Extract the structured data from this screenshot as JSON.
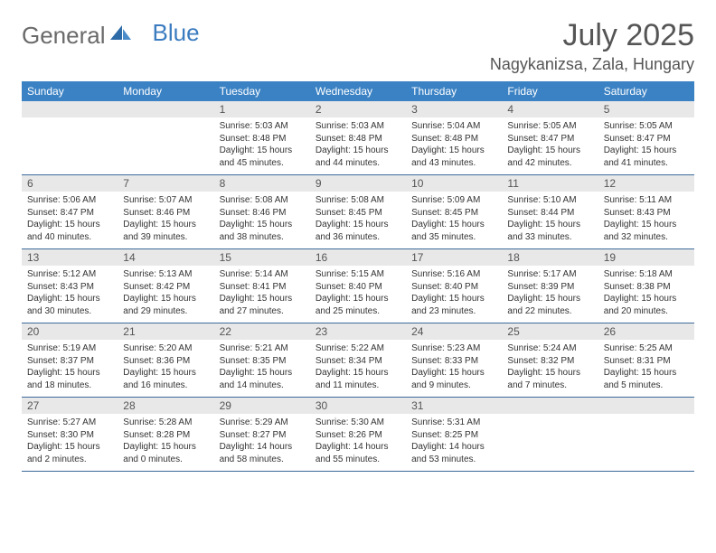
{
  "logo": {
    "text1": "General",
    "text2": "Blue"
  },
  "title": "July 2025",
  "location": "Nagykanizsa, Zala, Hungary",
  "colors": {
    "header_bg": "#3b82c4",
    "header_text": "#ffffff",
    "daynum_bg": "#e8e8e8",
    "row_border": "#3b6a9a",
    "logo_gray": "#6a6a6a",
    "logo_blue": "#3b7bc0"
  },
  "weekdays": [
    "Sunday",
    "Monday",
    "Tuesday",
    "Wednesday",
    "Thursday",
    "Friday",
    "Saturday"
  ],
  "weeks": [
    [
      null,
      null,
      {
        "n": "1",
        "sunrise": "5:03 AM",
        "sunset": "8:48 PM",
        "daylight": "15 hours and 45 minutes."
      },
      {
        "n": "2",
        "sunrise": "5:03 AM",
        "sunset": "8:48 PM",
        "daylight": "15 hours and 44 minutes."
      },
      {
        "n": "3",
        "sunrise": "5:04 AM",
        "sunset": "8:48 PM",
        "daylight": "15 hours and 43 minutes."
      },
      {
        "n": "4",
        "sunrise": "5:05 AM",
        "sunset": "8:47 PM",
        "daylight": "15 hours and 42 minutes."
      },
      {
        "n": "5",
        "sunrise": "5:05 AM",
        "sunset": "8:47 PM",
        "daylight": "15 hours and 41 minutes."
      }
    ],
    [
      {
        "n": "6",
        "sunrise": "5:06 AM",
        "sunset": "8:47 PM",
        "daylight": "15 hours and 40 minutes."
      },
      {
        "n": "7",
        "sunrise": "5:07 AM",
        "sunset": "8:46 PM",
        "daylight": "15 hours and 39 minutes."
      },
      {
        "n": "8",
        "sunrise": "5:08 AM",
        "sunset": "8:46 PM",
        "daylight": "15 hours and 38 minutes."
      },
      {
        "n": "9",
        "sunrise": "5:08 AM",
        "sunset": "8:45 PM",
        "daylight": "15 hours and 36 minutes."
      },
      {
        "n": "10",
        "sunrise": "5:09 AM",
        "sunset": "8:45 PM",
        "daylight": "15 hours and 35 minutes."
      },
      {
        "n": "11",
        "sunrise": "5:10 AM",
        "sunset": "8:44 PM",
        "daylight": "15 hours and 33 minutes."
      },
      {
        "n": "12",
        "sunrise": "5:11 AM",
        "sunset": "8:43 PM",
        "daylight": "15 hours and 32 minutes."
      }
    ],
    [
      {
        "n": "13",
        "sunrise": "5:12 AM",
        "sunset": "8:43 PM",
        "daylight": "15 hours and 30 minutes."
      },
      {
        "n": "14",
        "sunrise": "5:13 AM",
        "sunset": "8:42 PM",
        "daylight": "15 hours and 29 minutes."
      },
      {
        "n": "15",
        "sunrise": "5:14 AM",
        "sunset": "8:41 PM",
        "daylight": "15 hours and 27 minutes."
      },
      {
        "n": "16",
        "sunrise": "5:15 AM",
        "sunset": "8:40 PM",
        "daylight": "15 hours and 25 minutes."
      },
      {
        "n": "17",
        "sunrise": "5:16 AM",
        "sunset": "8:40 PM",
        "daylight": "15 hours and 23 minutes."
      },
      {
        "n": "18",
        "sunrise": "5:17 AM",
        "sunset": "8:39 PM",
        "daylight": "15 hours and 22 minutes."
      },
      {
        "n": "19",
        "sunrise": "5:18 AM",
        "sunset": "8:38 PM",
        "daylight": "15 hours and 20 minutes."
      }
    ],
    [
      {
        "n": "20",
        "sunrise": "5:19 AM",
        "sunset": "8:37 PM",
        "daylight": "15 hours and 18 minutes."
      },
      {
        "n": "21",
        "sunrise": "5:20 AM",
        "sunset": "8:36 PM",
        "daylight": "15 hours and 16 minutes."
      },
      {
        "n": "22",
        "sunrise": "5:21 AM",
        "sunset": "8:35 PM",
        "daylight": "15 hours and 14 minutes."
      },
      {
        "n": "23",
        "sunrise": "5:22 AM",
        "sunset": "8:34 PM",
        "daylight": "15 hours and 11 minutes."
      },
      {
        "n": "24",
        "sunrise": "5:23 AM",
        "sunset": "8:33 PM",
        "daylight": "15 hours and 9 minutes."
      },
      {
        "n": "25",
        "sunrise": "5:24 AM",
        "sunset": "8:32 PM",
        "daylight": "15 hours and 7 minutes."
      },
      {
        "n": "26",
        "sunrise": "5:25 AM",
        "sunset": "8:31 PM",
        "daylight": "15 hours and 5 minutes."
      }
    ],
    [
      {
        "n": "27",
        "sunrise": "5:27 AM",
        "sunset": "8:30 PM",
        "daylight": "15 hours and 2 minutes."
      },
      {
        "n": "28",
        "sunrise": "5:28 AM",
        "sunset": "8:28 PM",
        "daylight": "15 hours and 0 minutes."
      },
      {
        "n": "29",
        "sunrise": "5:29 AM",
        "sunset": "8:27 PM",
        "daylight": "14 hours and 58 minutes."
      },
      {
        "n": "30",
        "sunrise": "5:30 AM",
        "sunset": "8:26 PM",
        "daylight": "14 hours and 55 minutes."
      },
      {
        "n": "31",
        "sunrise": "5:31 AM",
        "sunset": "8:25 PM",
        "daylight": "14 hours and 53 minutes."
      },
      null,
      null
    ]
  ]
}
